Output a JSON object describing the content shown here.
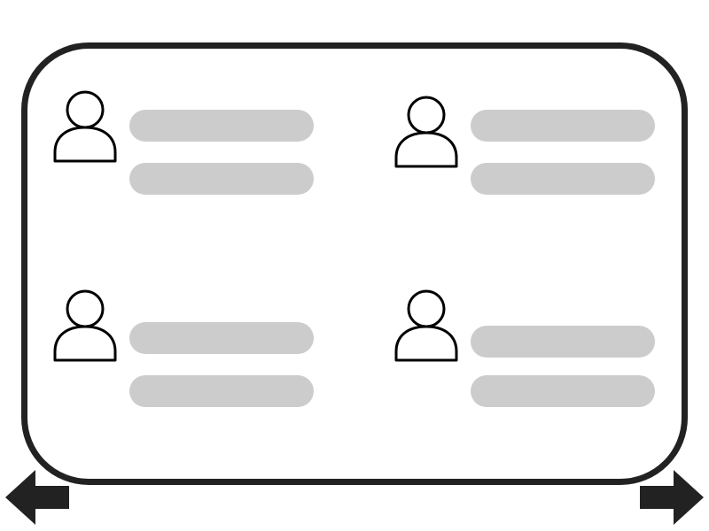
{
  "icons": {
    "user": "user-icon",
    "prev": "arrow-left-icon",
    "next": "arrow-right-icon"
  },
  "colors": {
    "frame": "#222222",
    "placeholder": "#cccccc",
    "arrow": "#222222",
    "background": "#ffffff"
  },
  "entries": [
    {
      "role": "user-entry",
      "lines": 2
    },
    {
      "role": "user-entry",
      "lines": 2
    },
    {
      "role": "user-entry",
      "lines": 2
    },
    {
      "role": "user-entry",
      "lines": 2
    }
  ]
}
